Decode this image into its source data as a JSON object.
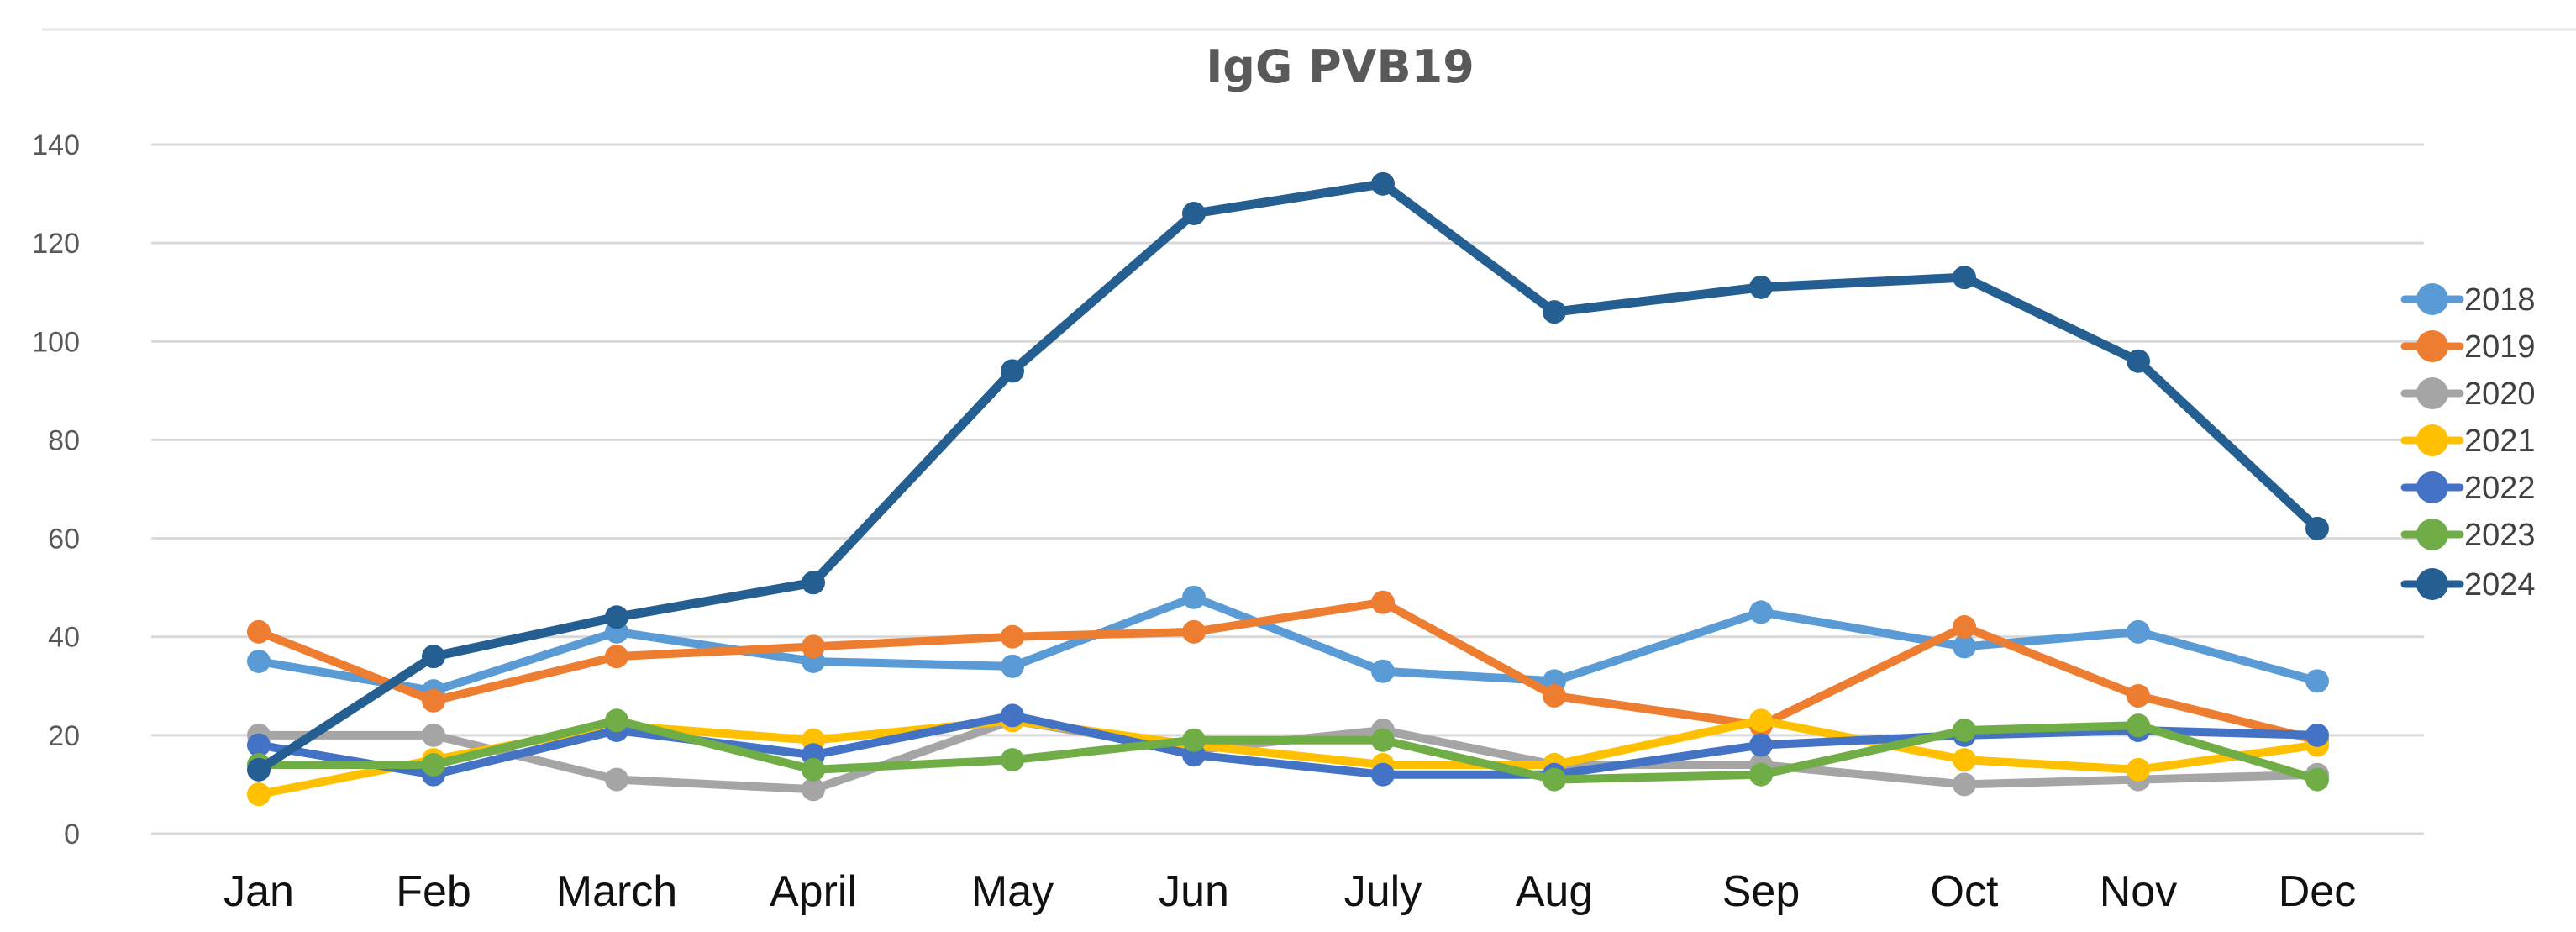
{
  "chart_data": {
    "type": "line",
    "title": "IgG PVB19",
    "xlabel": "",
    "ylabel": "",
    "categories": [
      "Jan",
      "Feb",
      "March",
      "April",
      "May",
      "Jun",
      "July",
      "Aug",
      "Sep",
      "Oct",
      "Nov",
      "Dec"
    ],
    "ylim": [
      0,
      140
    ],
    "yticks": [
      0,
      20,
      40,
      60,
      80,
      100,
      120,
      140
    ],
    "grid": true,
    "legend": "right",
    "series": [
      {
        "name": "2018",
        "color": "#5b9bd5",
        "values": [
          35,
          29,
          41,
          35,
          34,
          48,
          33,
          31,
          45,
          38,
          41,
          31
        ]
      },
      {
        "name": "2019",
        "color": "#ed7d31",
        "values": [
          41,
          27,
          36,
          38,
          40,
          41,
          47,
          28,
          22,
          42,
          28,
          19
        ]
      },
      {
        "name": "2020",
        "color": "#a5a5a5",
        "values": [
          20,
          20,
          11,
          9,
          23,
          17,
          21,
          14,
          14,
          10,
          11,
          12
        ]
      },
      {
        "name": "2021",
        "color": "#ffc000",
        "values": [
          8,
          15,
          22,
          19,
          23,
          18,
          14,
          14,
          23,
          15,
          13,
          18
        ]
      },
      {
        "name": "2022",
        "color": "#4472c4",
        "values": [
          18,
          12,
          21,
          16,
          24,
          16,
          12,
          12,
          18,
          20,
          21,
          20
        ]
      },
      {
        "name": "2023",
        "color": "#70ad47",
        "values": [
          14,
          14,
          23,
          13,
          15,
          19,
          19,
          11,
          12,
          21,
          22,
          11
        ]
      },
      {
        "name": "2024",
        "color": "#255e91",
        "values": [
          13,
          36,
          44,
          51,
          94,
          126,
          132,
          106,
          111,
          113,
          96,
          62
        ]
      }
    ]
  }
}
